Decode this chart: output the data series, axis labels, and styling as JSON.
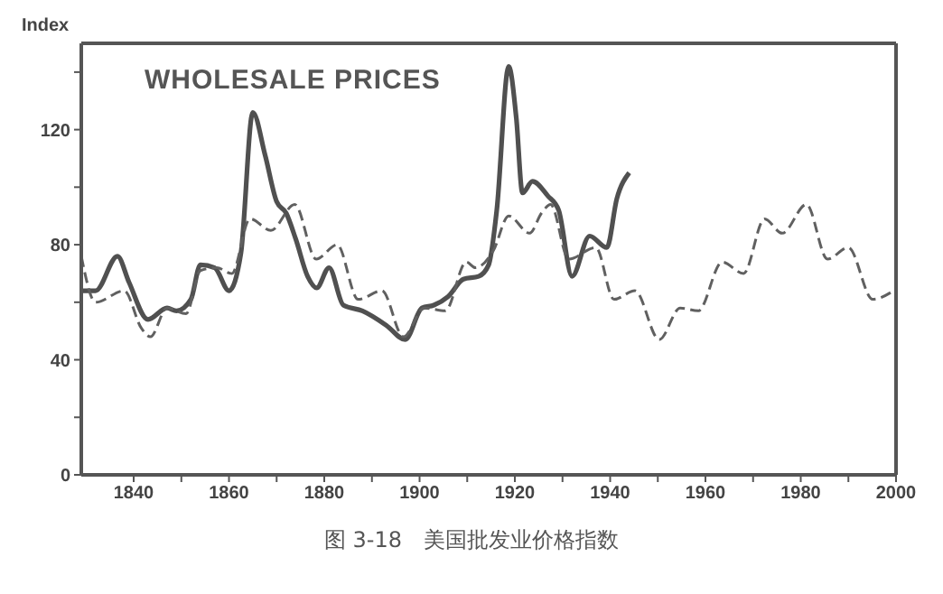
{
  "chart_data": {
    "type": "line",
    "title": "WHOLESALE PRICES",
    "ylabel": "Index",
    "annotations": [
      "图 3-18　美国批发业价格指数"
    ],
    "xlim": [
      1829,
      2000
    ],
    "xticks": [
      1840,
      {
        "value": 1850,
        "label": null
      },
      1860,
      {
        "value": 1870,
        "label": null
      },
      1880,
      {
        "value": 1890,
        "label": null
      },
      1900,
      {
        "value": 1910,
        "label": null
      },
      1920,
      {
        "value": 1930,
        "label": null
      },
      1940,
      {
        "value": 1950,
        "label": null
      },
      1960,
      {
        "value": 1970,
        "label": null
      },
      1980,
      {
        "value": 1990,
        "label": null
      },
      2000
    ],
    "ylim": [
      0,
      150
    ],
    "yticks": [
      0,
      {
        "value": 20,
        "label": null
      },
      40,
      {
        "value": 60,
        "label": null
      },
      80,
      {
        "value": 100,
        "label": null
      },
      120,
      {
        "value": 140,
        "label": null
      }
    ],
    "grid": false,
    "marker": "none",
    "series": [
      {
        "color": "#505050",
        "line_style": "solid",
        "x": [
          1829,
          1832,
          1836.6,
          1839,
          1843,
          1847,
          1849,
          1852,
          1854,
          1857,
          1860,
          1862.5,
          1865,
          1867.6,
          1870,
          1872,
          1874,
          1876.5,
          1878.4,
          1881,
          1884,
          1888,
          1893,
          1897,
          1900.5,
          1903,
          1906,
          1909.2,
          1912.4,
          1914.5,
          1916.2,
          1918.7,
          1920.3,
          1921.6,
          1923.7,
          1926.9,
          1929.2,
          1932,
          1935.7,
          1939.3,
          1941.4,
          1944
        ],
        "values": [
          64,
          64,
          76,
          67,
          54,
          58,
          57,
          61,
          73,
          72,
          64,
          77,
          126,
          111,
          95,
          91,
          82,
          69,
          65,
          72,
          59,
          57,
          52,
          47,
          58,
          59,
          62,
          68,
          69,
          73,
          92,
          142,
          124,
          98,
          102,
          97,
          92,
          69,
          83,
          79,
          96,
          105
        ]
      },
      {
        "color": "#606060",
        "line_style": "dashed",
        "x": [
          1829,
          1832,
          1838,
          1841.6,
          1843.5,
          1847,
          1851,
          1854,
          1857.4,
          1860.6,
          1864.4,
          1868.8,
          1873.8,
          1878.3,
          1882.7,
          1887.1,
          1892.1,
          1896.6,
          1901,
          1905.4,
          1909.8,
          1911.7,
          1915.5,
          1918.7,
          1923.1,
          1925.6,
          1927.5,
          1931.3,
          1937,
          1940.8,
          1945.2,
          1950.3,
          1954.7,
          1958.5,
          1963.5,
          1968,
          1972.4,
          1976.1,
          1981.2,
          1985.6,
          1990,
          1995.1,
          1999.5
        ],
        "values": [
          76,
          60,
          64,
          51,
          48,
          58,
          56,
          71,
          72,
          70,
          89,
          85,
          94,
          75,
          80,
          61,
          64,
          48,
          58,
          57,
          74,
          72,
          78,
          90,
          84,
          91,
          94,
          75,
          79,
          61,
          64,
          47,
          58,
          57,
          74,
          70,
          89,
          84,
          94,
          75,
          79,
          61,
          64
        ]
      }
    ]
  }
}
